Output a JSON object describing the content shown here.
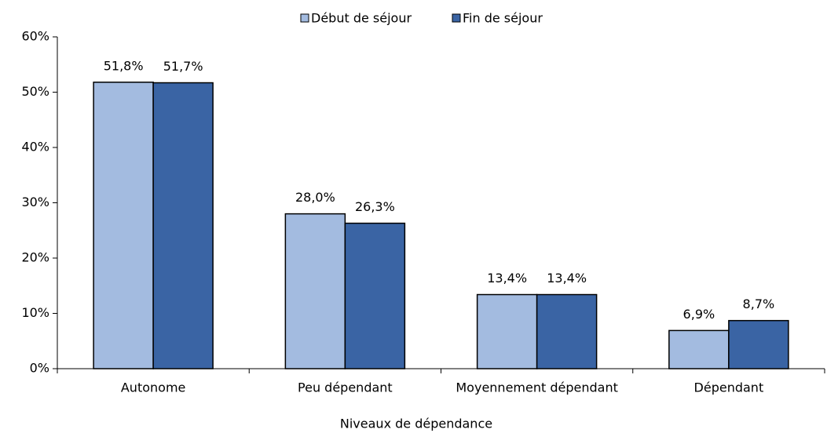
{
  "chart_data": {
    "type": "bar",
    "categories": [
      "Autonome",
      "Peu dépendant",
      "Moyennement dépendant",
      "Dépendant"
    ],
    "series": [
      {
        "name": "Début de séjour",
        "color": "#a3bbe0",
        "values": [
          51.8,
          28.0,
          13.4,
          6.9
        ],
        "value_labels": [
          "51,8%",
          "28,0%",
          "13,4%",
          "6,9%"
        ]
      },
      {
        "name": "Fin de séjour",
        "color": "#3a64a4",
        "values": [
          51.7,
          26.3,
          13.4,
          8.7
        ],
        "value_labels": [
          "51,7%",
          "26,3%",
          "13,4%",
          "8,7%"
        ]
      }
    ],
    "x_label": "Niveaux de dépendance",
    "ylim": [
      0,
      60
    ],
    "yticks": [
      {
        "value": 0,
        "label": "0%"
      },
      {
        "value": 10,
        "label": "10%"
      },
      {
        "value": 20,
        "label": "20%"
      },
      {
        "value": 30,
        "label": "30%"
      },
      {
        "value": 40,
        "label": "40%"
      },
      {
        "value": 50,
        "label": "50%"
      },
      {
        "value": 60,
        "label": "60%"
      }
    ],
    "legend": "top",
    "grid": false
  }
}
